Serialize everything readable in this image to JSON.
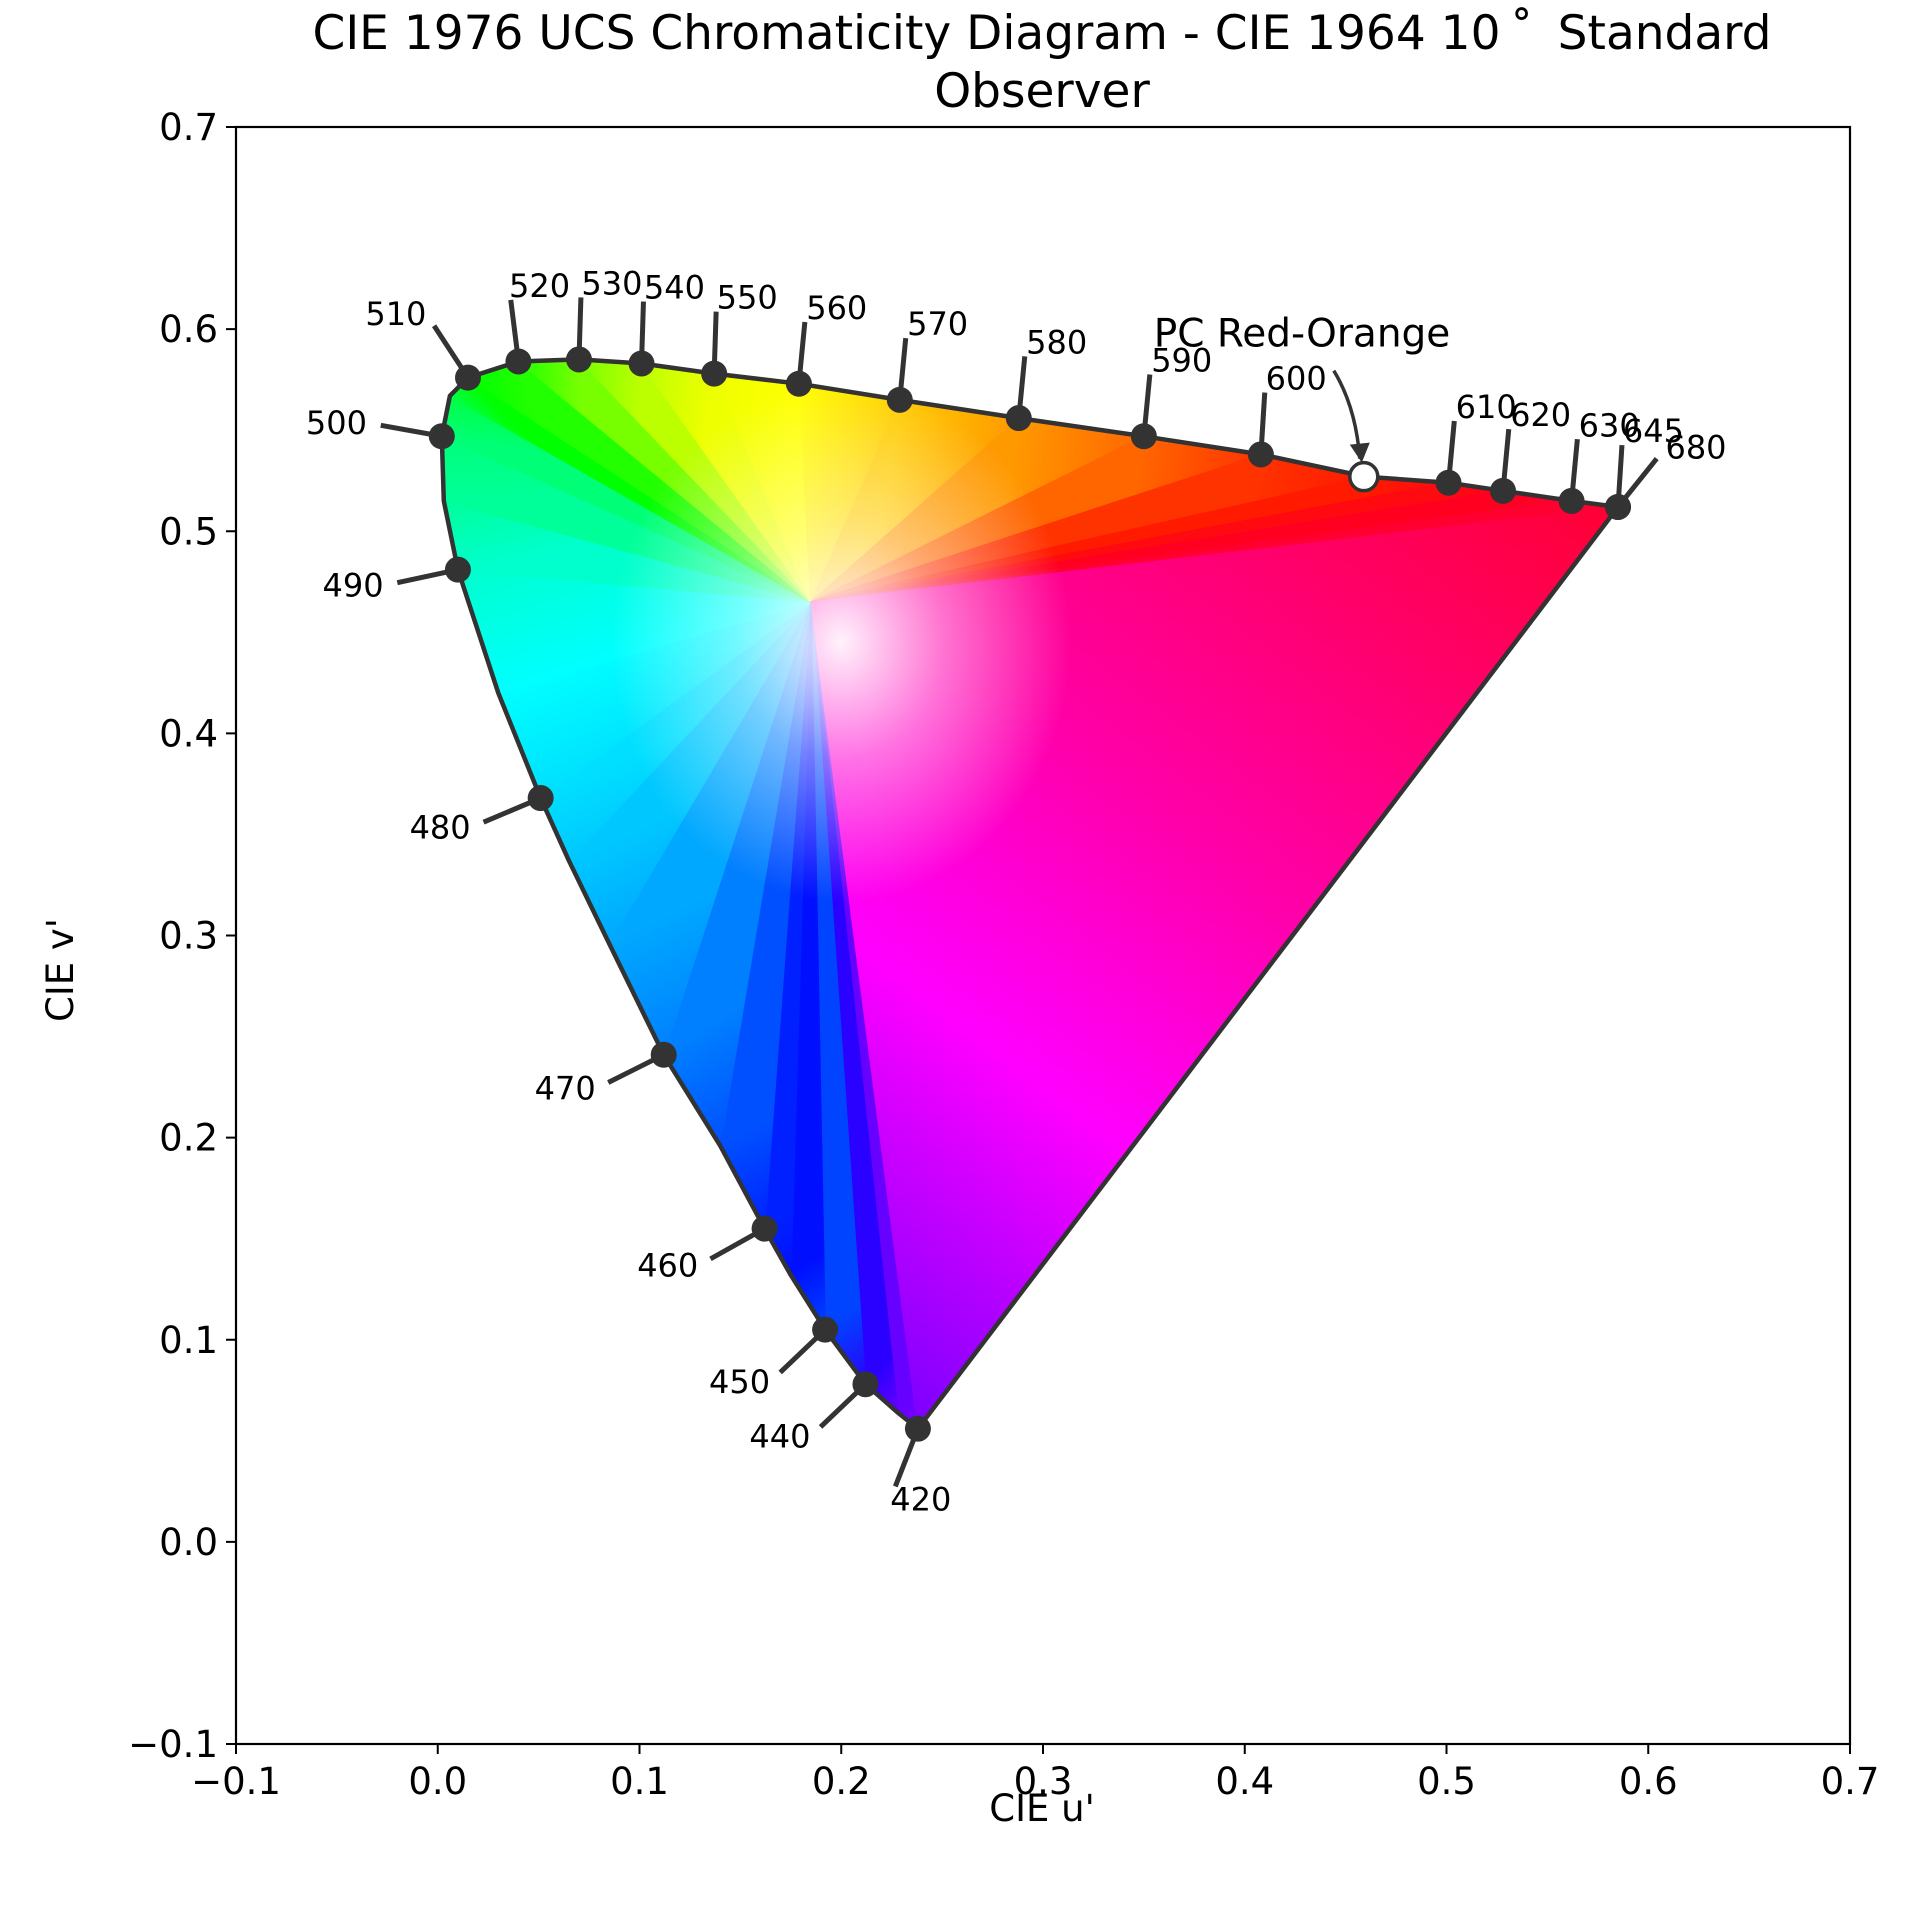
{
  "chart_data": {
    "type": "scatter",
    "title_line1": "CIE 1976 UCS Chromaticity Diagram - CIE 1964 10$^\\circ$ Standard",
    "title_line1_display": "CIE 1976 UCS Chromaticity Diagram - CIE 1964 10 ˚  Standard",
    "title_line2": "Observer",
    "xlabel": "CIE u'",
    "ylabel": "CIE v'",
    "xlim": [
      -0.1,
      0.7
    ],
    "ylim": [
      -0.1,
      0.7
    ],
    "xticks": [
      "−0.1",
      "0.0",
      "0.1",
      "0.2",
      "0.3",
      "0.4",
      "0.5",
      "0.6",
      "0.7"
    ],
    "yticks": [
      "−0.1",
      "0.0",
      "0.1",
      "0.2",
      "0.3",
      "0.4",
      "0.5",
      "0.6",
      "0.7"
    ],
    "grid": false,
    "spectral_locus": [
      [
        0.238,
        0.056
      ],
      [
        0.228,
        0.064
      ],
      [
        0.212,
        0.078
      ],
      [
        0.192,
        0.105
      ],
      [
        0.175,
        0.132
      ],
      [
        0.162,
        0.155
      ],
      [
        0.14,
        0.196
      ],
      [
        0.112,
        0.241
      ],
      [
        0.085,
        0.296
      ],
      [
        0.065,
        0.337
      ],
      [
        0.051,
        0.368
      ],
      [
        0.03,
        0.42
      ],
      [
        0.01,
        0.481
      ],
      [
        0.003,
        0.515
      ],
      [
        0.002,
        0.547
      ],
      [
        0.006,
        0.567
      ],
      [
        0.015,
        0.576
      ],
      [
        0.04,
        0.584
      ],
      [
        0.07,
        0.585
      ],
      [
        0.101,
        0.583
      ],
      [
        0.137,
        0.578
      ],
      [
        0.179,
        0.573
      ],
      [
        0.229,
        0.565
      ],
      [
        0.288,
        0.556
      ],
      [
        0.35,
        0.547
      ],
      [
        0.408,
        0.538
      ],
      [
        0.46,
        0.527
      ],
      [
        0.501,
        0.524
      ],
      [
        0.528,
        0.52
      ],
      [
        0.562,
        0.515
      ],
      [
        0.585,
        0.512
      ]
    ],
    "wavelength_markers": [
      {
        "label": "420",
        "u": 0.238,
        "v": 0.056
      },
      {
        "label": "440",
        "u": 0.212,
        "v": 0.078
      },
      {
        "label": "450",
        "u": 0.192,
        "v": 0.105
      },
      {
        "label": "460",
        "u": 0.162,
        "v": 0.155
      },
      {
        "label": "470",
        "u": 0.112,
        "v": 0.241
      },
      {
        "label": "480",
        "u": 0.051,
        "v": 0.368
      },
      {
        "label": "490",
        "u": 0.01,
        "v": 0.481
      },
      {
        "label": "500",
        "u": 0.002,
        "v": 0.547
      },
      {
        "label": "510",
        "u": 0.015,
        "v": 0.576
      },
      {
        "label": "520",
        "u": 0.04,
        "v": 0.584
      },
      {
        "label": "530",
        "u": 0.07,
        "v": 0.585
      },
      {
        "label": "540",
        "u": 0.101,
        "v": 0.583
      },
      {
        "label": "550",
        "u": 0.137,
        "v": 0.578
      },
      {
        "label": "560",
        "u": 0.179,
        "v": 0.573
      },
      {
        "label": "570",
        "u": 0.229,
        "v": 0.565
      },
      {
        "label": "580",
        "u": 0.288,
        "v": 0.556
      },
      {
        "label": "590",
        "u": 0.35,
        "v": 0.547
      },
      {
        "label": "600",
        "u": 0.408,
        "v": 0.538
      },
      {
        "label": "610",
        "u": 0.501,
        "v": 0.524
      },
      {
        "label": "620",
        "u": 0.528,
        "v": 0.52
      },
      {
        "label": "630",
        "u": 0.562,
        "v": 0.515
      },
      {
        "label": "645",
        "u": 0.585,
        "v": 0.512
      },
      {
        "label": "680",
        "u": 0.585,
        "v": 0.512
      }
    ],
    "highlighted_point": {
      "label": "PC Red-Orange",
      "u": 0.459,
      "v": 0.527
    },
    "colors": {
      "locus_line": "#333333",
      "marker": "#333333",
      "highlight_fill": "#ffffff",
      "purple_line_end": "#ff0033"
    }
  }
}
